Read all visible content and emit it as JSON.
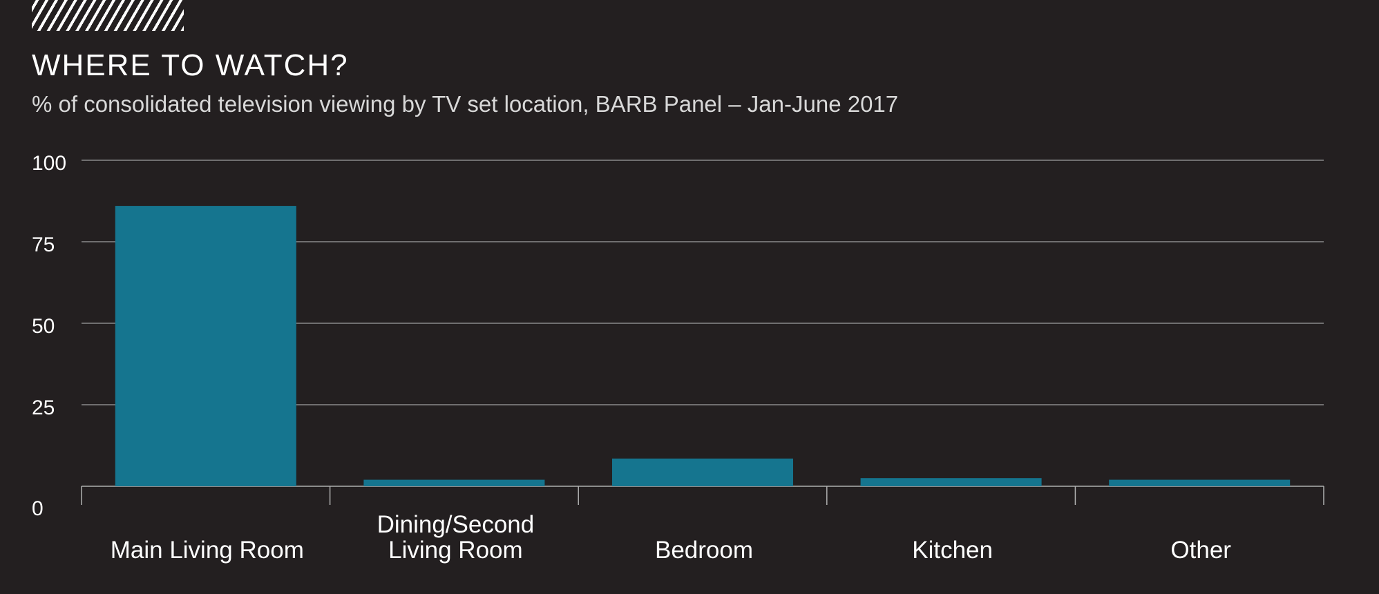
{
  "header": {
    "title": "WHERE TO WATCH?",
    "subtitle": "% of consolidated television viewing by TV set location, BARB Panel – Jan-June 2017"
  },
  "colors": {
    "background": "#231f20",
    "bar": "#15758f",
    "grid": "#8a8a8a",
    "text": "#ffffff"
  },
  "chart_data": {
    "type": "bar",
    "categories": [
      [
        "Main Living Room"
      ],
      [
        "Dining/Second",
        "Living Room"
      ],
      [
        "Bedroom"
      ],
      [
        "Kitchen"
      ],
      [
        "Other"
      ]
    ],
    "values": [
      86,
      2,
      8.5,
      2.5,
      2
    ],
    "ylim": [
      0,
      100
    ],
    "yticks": [
      "0",
      "25",
      "50",
      "75",
      "100"
    ],
    "grid": true
  }
}
